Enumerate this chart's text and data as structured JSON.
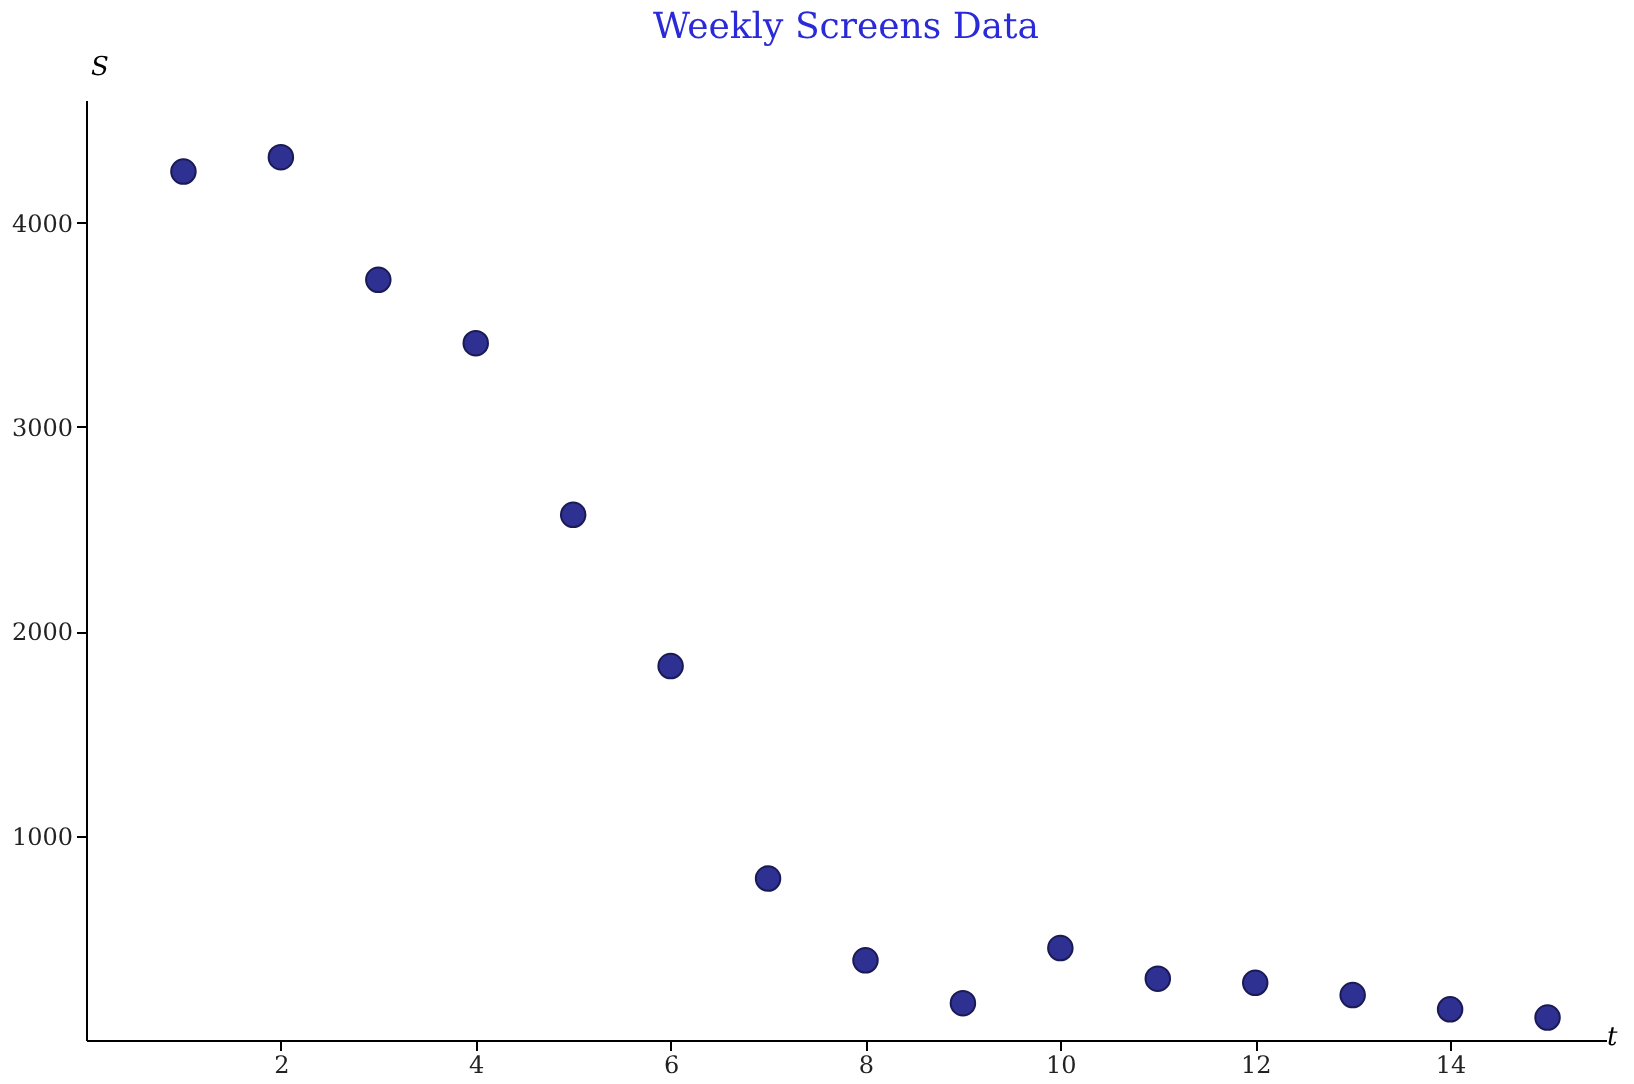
{
  "chart_data": {
    "type": "scatter",
    "title": "Weekly Screens Data",
    "xlabel": "t",
    "ylabel": "S",
    "x": [
      1,
      2,
      3,
      4,
      5,
      6,
      7,
      8,
      9,
      10,
      11,
      12,
      13,
      14,
      15
    ],
    "series": [
      {
        "color": "#2e3192",
        "values": [
          4250,
          4320,
          3720,
          3410,
          2570,
          1830,
          790,
          390,
          180,
          450,
          300,
          280,
          220,
          150,
          110
        ]
      }
    ],
    "xlim": [
      0,
      15.6
    ],
    "ylim": [
      0,
      4600
    ],
    "xticks": [
      2,
      4,
      6,
      8,
      10,
      12,
      14
    ],
    "yticks": [
      1000,
      2000,
      3000,
      4000
    ],
    "grid": false,
    "marker": "circle"
  }
}
